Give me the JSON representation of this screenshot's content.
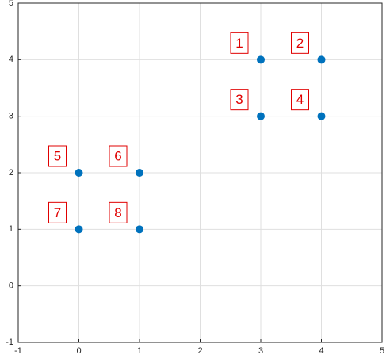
{
  "chart_data": {
    "type": "scatter",
    "x": [
      3,
      4,
      3,
      4,
      0,
      1,
      0,
      1
    ],
    "series": [
      {
        "color": "#0072bd",
        "values": [
          4,
          4,
          3,
          3,
          2,
          2,
          1,
          1
        ]
      }
    ],
    "point_labels": [
      "1",
      "2",
      "3",
      "4",
      "5",
      "6",
      "7",
      "8"
    ],
    "label_color": "#e00000",
    "xlim": [
      -1,
      5
    ],
    "ylim": [
      -1,
      5
    ],
    "xticks": [
      -1,
      0,
      1,
      2,
      3,
      4,
      5
    ],
    "yticks": [
      -1,
      0,
      1,
      2,
      3,
      4,
      5
    ],
    "grid": true
  }
}
